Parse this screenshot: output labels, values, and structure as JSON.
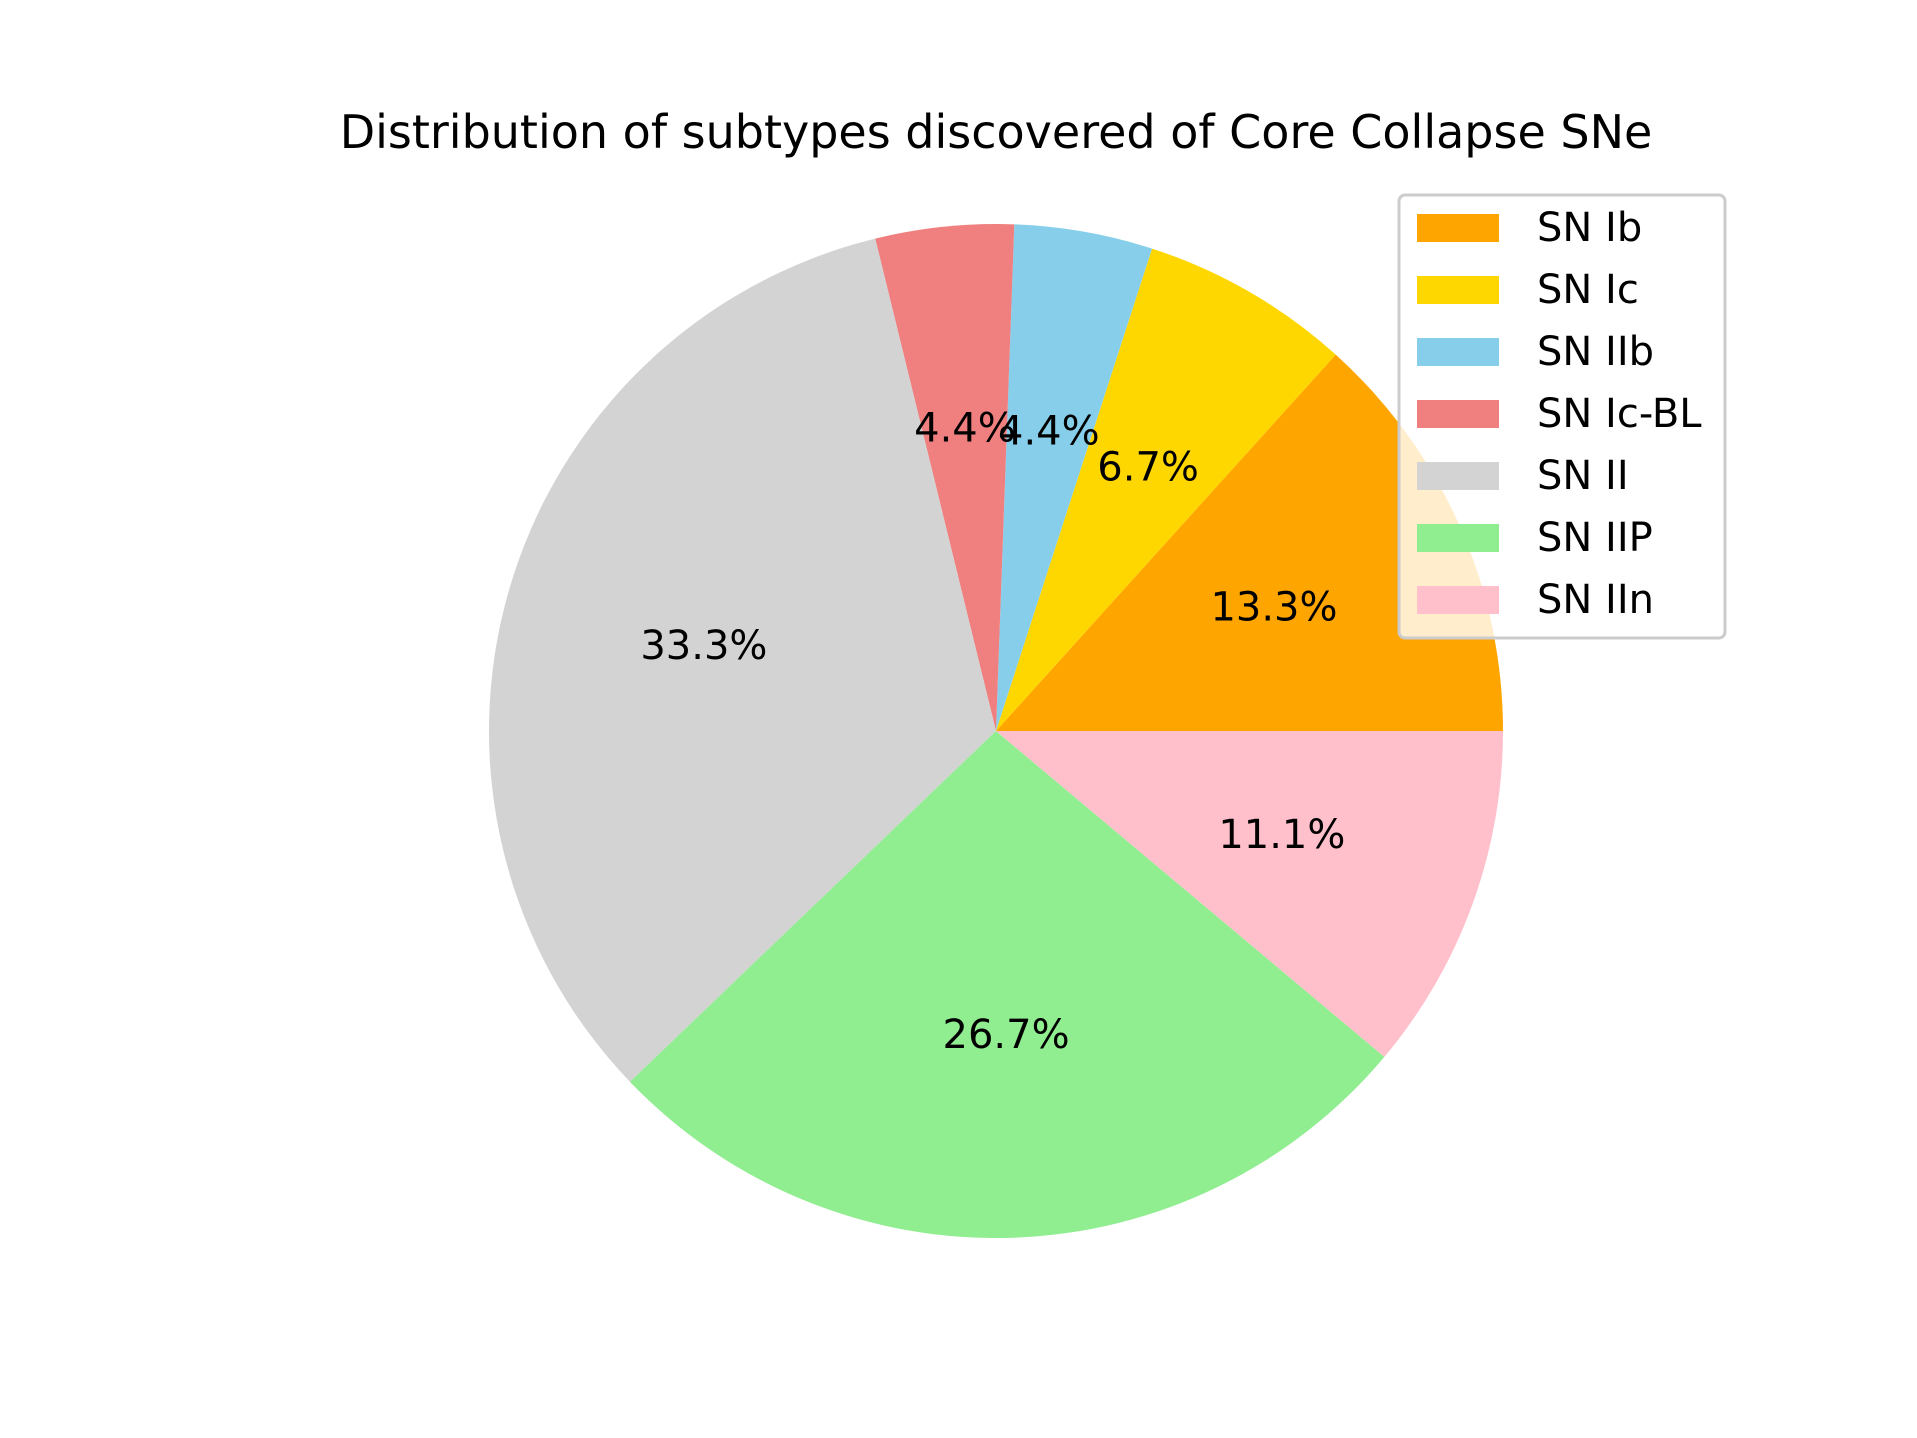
{
  "chart_data": {
    "type": "pie",
    "title": "Distribution of subtypes discovered of Core Collapse SNe",
    "legend_position": "top-right",
    "start_angle_deg": 0,
    "direction": "counterclockwise",
    "slices": [
      {
        "label": "SN Ib",
        "value": 13.3,
        "pct_label": "13.3%",
        "color": "#FFA500"
      },
      {
        "label": "SN Ic",
        "value": 6.7,
        "pct_label": "6.7%",
        "color": "#FFD700"
      },
      {
        "label": "SN IIb",
        "value": 4.4,
        "pct_label": "4.4%",
        "color": "#87CEEB"
      },
      {
        "label": "SN Ic-BL",
        "value": 4.4,
        "pct_label": "4.4%",
        "color": "#F08080"
      },
      {
        "label": "SN II",
        "value": 33.3,
        "pct_label": "33.3%",
        "color": "#D3D3D3"
      },
      {
        "label": "SN IIP",
        "value": 26.7,
        "pct_label": "26.7%",
        "color": "#90EE90"
      },
      {
        "label": "SN IIn",
        "value": 11.1,
        "pct_label": "11.1%",
        "color": "#FFC0CB"
      }
    ]
  }
}
